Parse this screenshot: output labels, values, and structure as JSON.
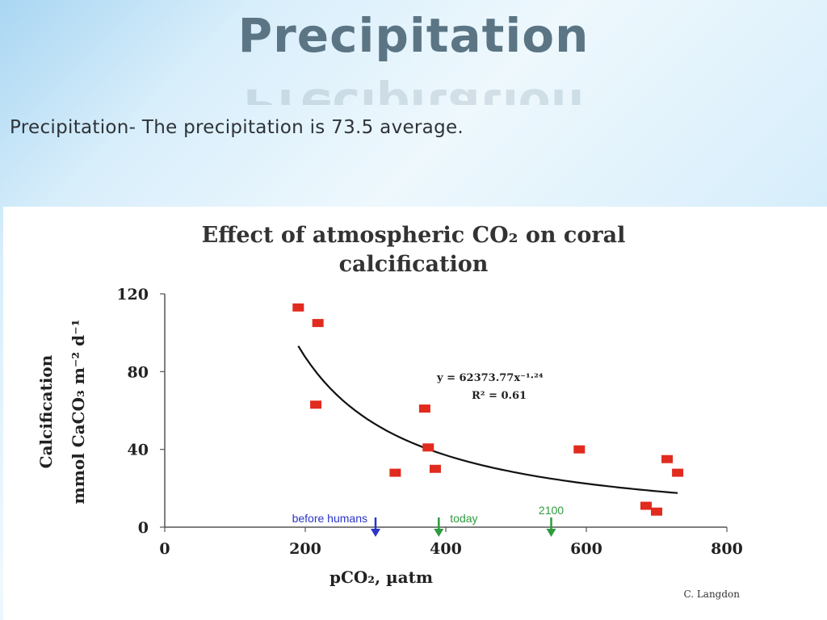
{
  "slide": {
    "title": "Precipitation",
    "body": "Precipitation- The precipitation is 73.5 average."
  },
  "chart_data": {
    "type": "scatter",
    "title_line1": "Effect of atmospheric CO₂ on coral",
    "title_line2": "calcification",
    "xlabel": "pCO₂, µatm",
    "ylabel_line1": "Calcification",
    "ylabel_line2": "mmol CaCO₃ m⁻² d⁻¹",
    "xlim": [
      0,
      800
    ],
    "ylim": [
      0,
      120
    ],
    "x_ticks": [
      0,
      200,
      400,
      600,
      800
    ],
    "y_ticks": [
      0,
      40,
      80,
      120
    ],
    "points": [
      {
        "x": 190,
        "y": 113
      },
      {
        "x": 218,
        "y": 105
      },
      {
        "x": 215,
        "y": 63
      },
      {
        "x": 370,
        "y": 61
      },
      {
        "x": 375,
        "y": 41
      },
      {
        "x": 328,
        "y": 28
      },
      {
        "x": 385,
        "y": 30
      },
      {
        "x": 590,
        "y": 40
      },
      {
        "x": 715,
        "y": 35
      },
      {
        "x": 730,
        "y": 28
      },
      {
        "x": 685,
        "y": 11
      },
      {
        "x": 700,
        "y": 8
      }
    ],
    "trendline": {
      "type": "power",
      "a": 62373.77,
      "b": -1.24,
      "x_from": 190,
      "x_to": 730
    },
    "equation": "y = 62373.77x⁻¹·²⁴",
    "r_squared": "R² = 0.61",
    "annotations": [
      {
        "label": "before humans",
        "x": 300,
        "color": "#2a34c8"
      },
      {
        "label": "today",
        "x": 390,
        "color": "#2f9b3f"
      },
      {
        "label": "2100",
        "x": 550,
        "color": "#2f9b3f"
      }
    ],
    "credit": "C. Langdon",
    "colors": {
      "marker": "#e02b1e",
      "trend": "#111111",
      "axis": "#555555"
    }
  }
}
